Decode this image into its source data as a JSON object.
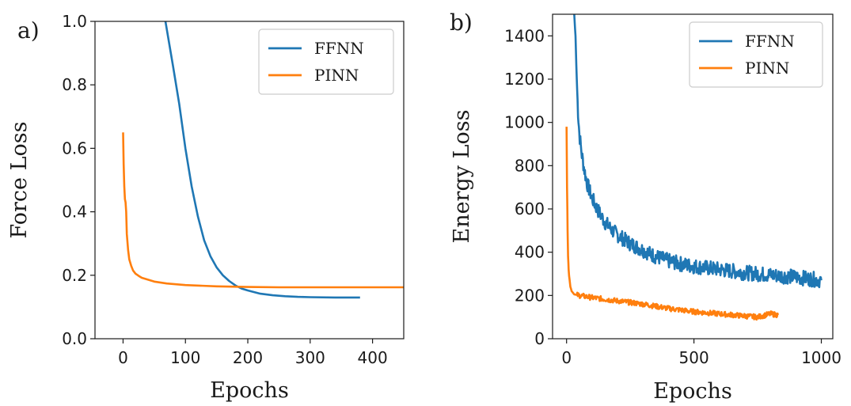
{
  "chart_data": [
    {
      "type": "line",
      "panel_label": "a)",
      "xlabel": "Epochs",
      "ylabel": "Force Loss",
      "xlim": [
        -45,
        450
      ],
      "ylim": [
        0.0,
        1.0
      ],
      "xticks": [
        0,
        100,
        200,
        300,
        400
      ],
      "xtick_labels": [
        "0",
        "100",
        "200",
        "300",
        "400"
      ],
      "yticks": [
        0.0,
        0.2,
        0.4,
        0.6,
        0.8,
        1.0
      ],
      "ytick_labels": [
        "0.0",
        "0.2",
        "0.4",
        "0.6",
        "0.8",
        "1.0"
      ],
      "legend_position": "top-right",
      "series": [
        {
          "name": "FFNN",
          "color": "#1f77b4",
          "x": [
            68,
            80,
            90,
            100,
            110,
            120,
            130,
            140,
            150,
            160,
            170,
            180,
            190,
            200,
            220,
            240,
            260,
            280,
            300,
            340,
            380
          ],
          "y": [
            1.0,
            0.86,
            0.74,
            0.6,
            0.48,
            0.385,
            0.31,
            0.26,
            0.225,
            0.2,
            0.182,
            0.168,
            0.158,
            0.152,
            0.142,
            0.137,
            0.134,
            0.132,
            0.131,
            0.13,
            0.13
          ]
        },
        {
          "name": "PINN",
          "color": "#ff7f0e",
          "x": [
            0,
            1,
            2,
            3,
            4,
            5,
            6,
            8,
            10,
            13,
            16,
            20,
            25,
            30,
            40,
            50,
            70,
            100,
            150,
            200,
            250,
            300,
            350,
            400,
            450
          ],
          "y": [
            0.65,
            0.55,
            0.48,
            0.44,
            0.43,
            0.4,
            0.33,
            0.28,
            0.25,
            0.23,
            0.215,
            0.205,
            0.198,
            0.192,
            0.186,
            0.18,
            0.174,
            0.169,
            0.165,
            0.163,
            0.162,
            0.162,
            0.162,
            0.162,
            0.162
          ]
        }
      ]
    },
    {
      "type": "line",
      "panel_label": "b)",
      "xlabel": "Epochs",
      "ylabel": "Energy Loss",
      "xlim": [
        -55,
        1045
      ],
      "ylim": [
        0,
        1500
      ],
      "xticks": [
        0,
        500,
        1000
      ],
      "xtick_labels": [
        "0",
        "500",
        "1000"
      ],
      "yticks": [
        0,
        200,
        400,
        600,
        800,
        1000,
        1200,
        1400
      ],
      "ytick_labels": [
        "0",
        "200",
        "400",
        "600",
        "800",
        "1000",
        "1200",
        "1400"
      ],
      "legend_position": "top-right",
      "series": [
        {
          "name": "FFNN",
          "color": "#1f77b4",
          "x": [
            30,
            35,
            40,
            45,
            50,
            60,
            70,
            80,
            100,
            120,
            150,
            180,
            200,
            250,
            300,
            350,
            400,
            450,
            500,
            600,
            700,
            800,
            900,
            1000
          ],
          "y": [
            1500,
            1400,
            1200,
            1050,
            950,
            850,
            780,
            720,
            650,
            600,
            540,
            500,
            480,
            440,
            410,
            380,
            360,
            345,
            335,
            320,
            305,
            295,
            285,
            270
          ],
          "noise": 35
        },
        {
          "name": "PINN",
          "color": "#ff7f0e",
          "x": [
            0,
            2,
            4,
            6,
            8,
            10,
            15,
            20,
            30,
            50,
            100,
            200,
            300,
            400,
            500,
            600,
            700,
            750,
            800,
            830
          ],
          "y": [
            980,
            700,
            500,
            380,
            320,
            290,
            240,
            220,
            205,
            200,
            190,
            175,
            160,
            140,
            125,
            115,
            105,
            100,
            115,
            110
          ],
          "noise": 12
        }
      ]
    }
  ]
}
